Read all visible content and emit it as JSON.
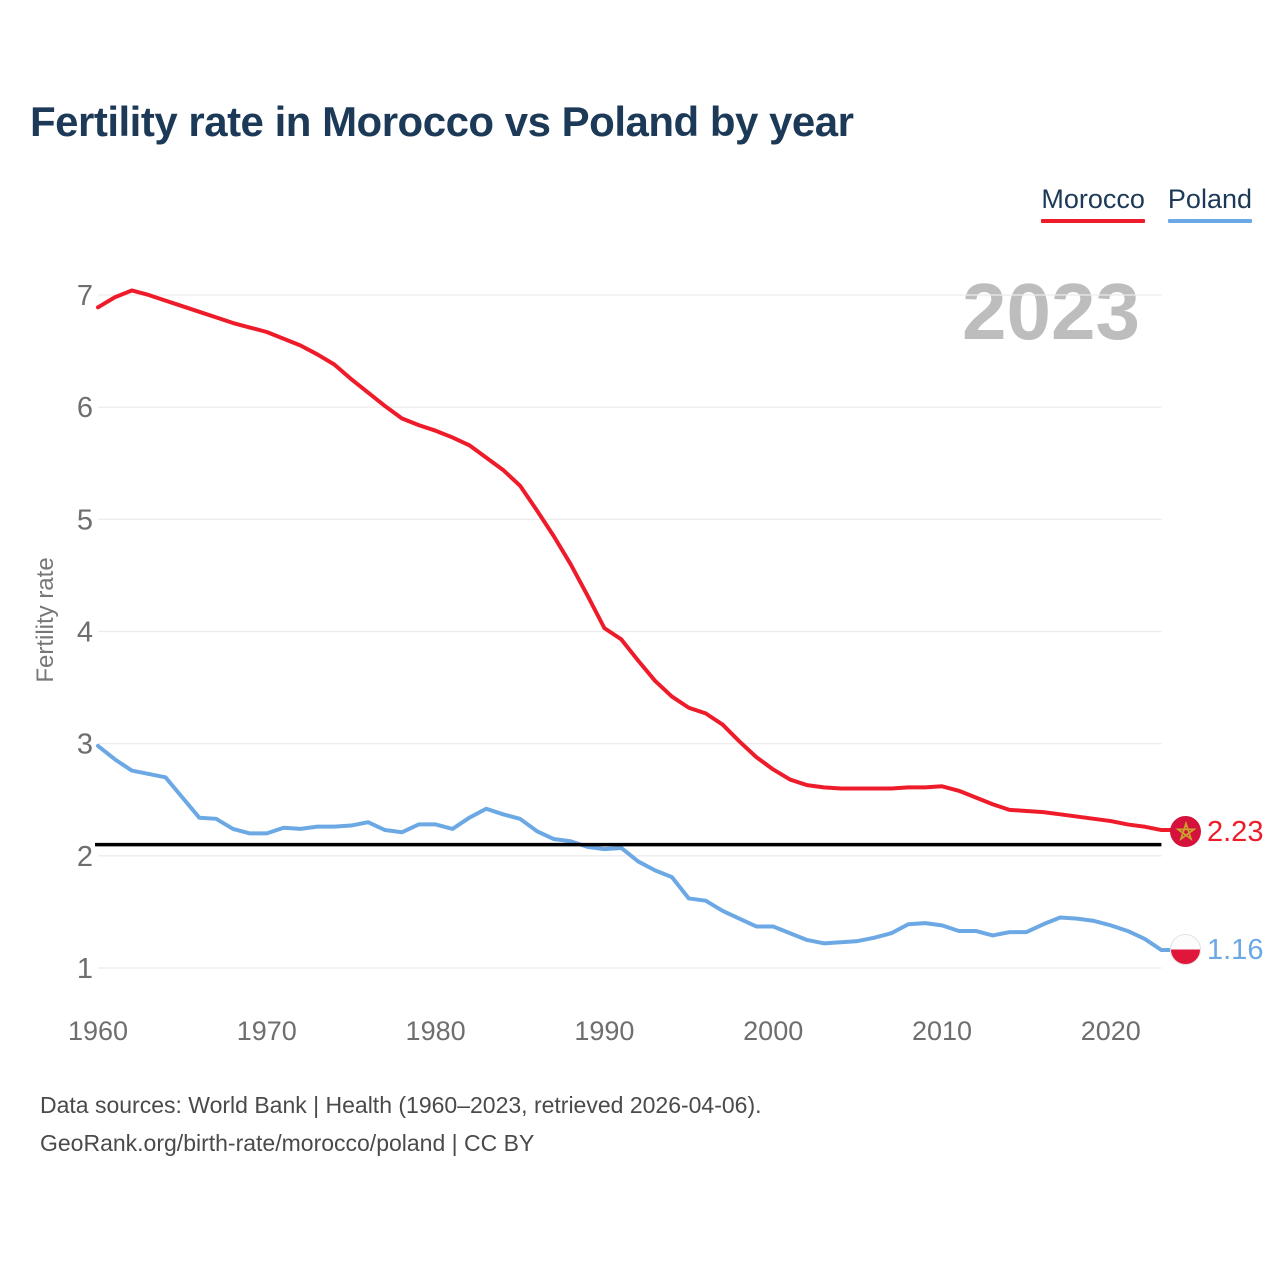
{
  "header": {
    "title": "Fertility rate in Morocco vs Poland by year"
  },
  "legend": [
    {
      "label": "Morocco",
      "color": "#ee1c2b"
    },
    {
      "label": "Poland",
      "color": "#6ca9e4"
    }
  ],
  "watermark": "2023",
  "chart_data": {
    "type": "line",
    "title": "Fertility rate in Morocco vs Poland by year",
    "xlabel": "",
    "ylabel": "Fertility rate",
    "ylim": [
      1,
      7.1
    ],
    "grid": "horizontal",
    "legend_position": "top-right",
    "yticks": [
      1,
      2,
      3,
      4,
      5,
      6,
      7
    ],
    "xticks": [
      1960,
      1970,
      1980,
      1990,
      2000,
      2010,
      2020
    ],
    "reference_line": {
      "value": 2.1,
      "color": "#000000"
    },
    "x": [
      1960,
      1961,
      1962,
      1963,
      1964,
      1965,
      1966,
      1967,
      1968,
      1969,
      1970,
      1971,
      1972,
      1973,
      1974,
      1975,
      1976,
      1977,
      1978,
      1979,
      1980,
      1981,
      1982,
      1983,
      1984,
      1985,
      1986,
      1987,
      1988,
      1989,
      1990,
      1991,
      1992,
      1993,
      1994,
      1995,
      1996,
      1997,
      1998,
      1999,
      2000,
      2001,
      2002,
      2003,
      2004,
      2005,
      2006,
      2007,
      2008,
      2009,
      2010,
      2011,
      2012,
      2013,
      2014,
      2015,
      2016,
      2017,
      2018,
      2019,
      2020,
      2021,
      2022,
      2023
    ],
    "series": [
      {
        "name": "Morocco",
        "color": "#ee1c2b",
        "end_label": "2.23",
        "values": [
          6.89,
          6.98,
          7.04,
          7.0,
          6.95,
          6.9,
          6.85,
          6.8,
          6.75,
          6.71,
          6.67,
          6.61,
          6.55,
          6.47,
          6.38,
          6.25,
          6.13,
          6.01,
          5.9,
          5.84,
          5.79,
          5.73,
          5.66,
          5.55,
          5.44,
          5.3,
          5.08,
          4.85,
          4.6,
          4.32,
          4.03,
          3.93,
          3.74,
          3.56,
          3.42,
          3.32,
          3.27,
          3.17,
          3.02,
          2.88,
          2.77,
          2.68,
          2.63,
          2.61,
          2.6,
          2.6,
          2.6,
          2.6,
          2.61,
          2.61,
          2.62,
          2.58,
          2.52,
          2.46,
          2.41,
          2.4,
          2.39,
          2.37,
          2.35,
          2.33,
          2.31,
          2.28,
          2.26,
          2.23
        ]
      },
      {
        "name": "Poland",
        "color": "#6ca9e4",
        "end_label": "1.16",
        "values": [
          2.98,
          2.86,
          2.76,
          2.73,
          2.7,
          2.52,
          2.34,
          2.33,
          2.24,
          2.2,
          2.2,
          2.25,
          2.24,
          2.26,
          2.26,
          2.27,
          2.3,
          2.23,
          2.21,
          2.28,
          2.28,
          2.24,
          2.34,
          2.42,
          2.37,
          2.33,
          2.22,
          2.15,
          2.13,
          2.08,
          2.06,
          2.07,
          1.95,
          1.87,
          1.81,
          1.62,
          1.6,
          1.51,
          1.44,
          1.37,
          1.37,
          1.31,
          1.25,
          1.22,
          1.23,
          1.24,
          1.27,
          1.31,
          1.39,
          1.4,
          1.38,
          1.33,
          1.33,
          1.29,
          1.32,
          1.32,
          1.39,
          1.45,
          1.44,
          1.42,
          1.38,
          1.33,
          1.26,
          1.16
        ]
      }
    ]
  },
  "footer": {
    "line1": "Data sources: World Bank | Health (1960–2023, retrieved 2026-04-06).",
    "line2": "GeoRank.org/birth-rate/morocco/poland | CC BY"
  }
}
